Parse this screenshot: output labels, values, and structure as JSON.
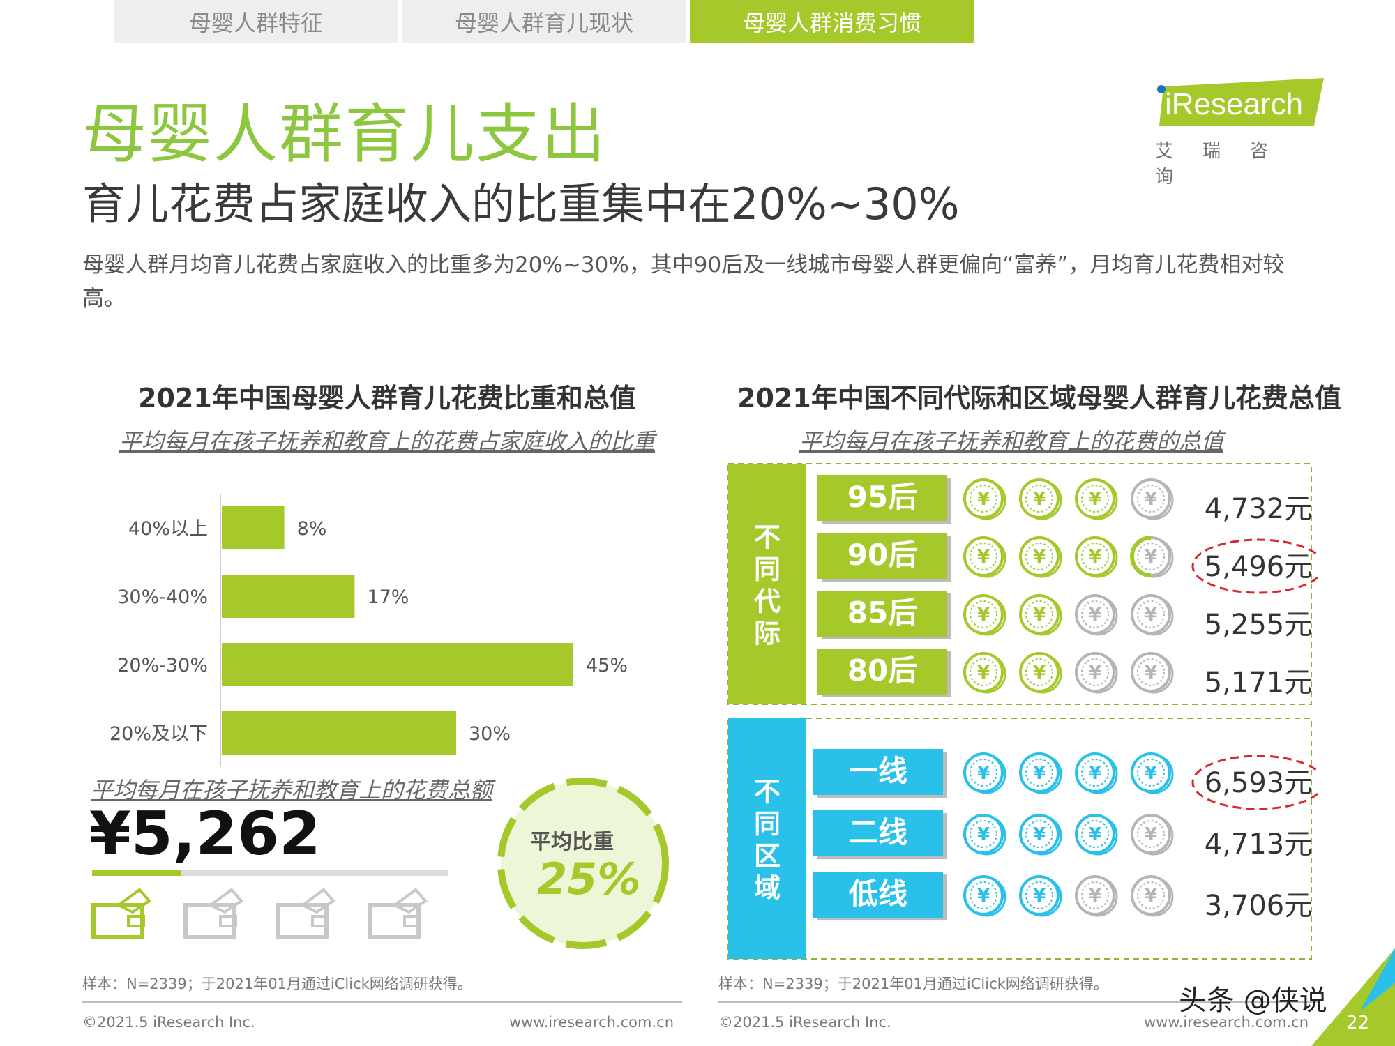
{
  "tabs": [
    {
      "label": "母婴人群特征",
      "active": false
    },
    {
      "label": "母婴人群育儿现状",
      "active": false
    },
    {
      "label": "母婴人群消费习惯",
      "active": true
    }
  ],
  "header": {
    "title": "母婴人群育儿支出",
    "subtitle": "育儿花费占家庭收入的比重集中在20%~30%",
    "description": "母婴人群月均育儿花费占家庭收入的比重多为20%~30%，其中90后及一线城市母婴人群更偏向“富养”，月均育儿花费相对较高。"
  },
  "logo": {
    "brand": "iResearch",
    "cn": "艾瑞咨询"
  },
  "colors": {
    "green": "#a5c92b",
    "title_green": "#8dc63f",
    "blue": "#29c0ea",
    "grey_coin": "#b5b5b5",
    "red_highlight": "#d9262e"
  },
  "left": {
    "title": "2021年中国母婴人群育儿花费比重和总值",
    "subtitle": "平均每月在孩子抚养和教育上的花费占家庭收入的比重",
    "amount_label": "平均每月在孩子抚养和教育上的花费总额",
    "amount": "¥5,262",
    "amount_progress": 0.25,
    "avg_label": "平均比重",
    "avg_value": "25%",
    "wallets_total": 4,
    "wallets_highlighted": 1,
    "source": "样本：N=2339；于2021年01月通过iClick网络调研获得。",
    "copyright": "©2021.5 iResearch Inc.",
    "url": "www.iresearch.com.cn"
  },
  "right": {
    "title": "2021年中国不同代际和区域母婴人群育儿花费总值",
    "subtitle": "平均每月在孩子抚养和教育上的花费的总值",
    "group1_label": "不同代际",
    "group2_label": "不同区域",
    "source": "样本：N=2339；于2021年01月通过iClick网络调研获得。",
    "copyright": "©2021.5 iResearch Inc.",
    "url": "www.iresearch.com.cn"
  },
  "chart_data": [
    {
      "type": "bar",
      "orientation": "horizontal",
      "title": "2021年中国母婴人群育儿花费比重和总值",
      "subtitle": "平均每月在孩子抚养和教育上的花费占家庭收入的比重",
      "categories": [
        "40%以上",
        "30%-40%",
        "20%-30%",
        "20%及以下"
      ],
      "values": [
        8,
        17,
        45,
        30
      ],
      "value_labels": [
        "8%",
        "17%",
        "45%",
        "30%"
      ],
      "unit": "%",
      "xlim": [
        0,
        50
      ],
      "color": "#a5c92b"
    },
    {
      "type": "table",
      "title": "2021年中国不同代际和区域母婴人群育儿花费总值",
      "subtitle": "平均每月在孩子抚养和教育上的花费的总值",
      "groups": [
        {
          "name": "不同代际",
          "color": "#a5c92b",
          "rows": [
            {
              "label": "95后",
              "value": 4732,
              "value_label": "4,732元",
              "coins": 3.0,
              "highlight": false
            },
            {
              "label": "90后",
              "value": 5496,
              "value_label": "5,496元",
              "coins": 3.5,
              "highlight": true
            },
            {
              "label": "85后",
              "value": 5255,
              "value_label": "5,255元",
              "coins": 2.0,
              "highlight": false
            },
            {
              "label": "80后",
              "value": 5171,
              "value_label": "5,171元",
              "coins": 2.0,
              "highlight": false
            }
          ]
        },
        {
          "name": "不同区域",
          "color": "#29c0ea",
          "rows": [
            {
              "label": "一线",
              "value": 6593,
              "value_label": "6,593元",
              "coins": 4.0,
              "highlight": true
            },
            {
              "label": "二线",
              "value": 4713,
              "value_label": "4,713元",
              "coins": 3.0,
              "highlight": false
            },
            {
              "label": "低线",
              "value": 3706,
              "value_label": "3,706元",
              "coins": 2.0,
              "highlight": false
            }
          ]
        }
      ]
    }
  ],
  "watermark": "头条 @侠说",
  "page_number": "22"
}
